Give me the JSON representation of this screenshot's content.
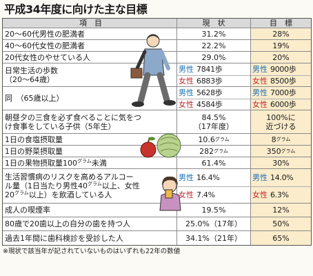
{
  "title": "平成34年度に向けた主な目標",
  "headers": {
    "item": "項　目",
    "current": "現　状",
    "target": "目　標"
  },
  "rows": [
    {
      "item": "20〜60代男性の肥満者",
      "current": "31.2%",
      "target": "28%"
    },
    {
      "item": "40〜60代女性の肥満者",
      "current": "22.2%",
      "target": "19%"
    },
    {
      "item": "20代女性のやせている人",
      "current": "29.0%",
      "target": "20%"
    },
    {
      "item_line1": "日常生活の歩数",
      "item_line2": "（20〜64歳）",
      "current": [
        {
          "sex": "男性",
          "value": "7841歩"
        },
        {
          "sex": "女性",
          "value": "6883歩"
        }
      ],
      "target": [
        {
          "sex": "男性",
          "value": "9000歩"
        },
        {
          "sex": "女性",
          "value": "8500歩"
        }
      ]
    },
    {
      "item": "同　（65歳以上）",
      "current": [
        {
          "sex": "男性",
          "value": "5628歩"
        },
        {
          "sex": "女性",
          "value": "4584歩"
        }
      ],
      "target": [
        {
          "sex": "男性",
          "value": "7000歩"
        },
        {
          "sex": "女性",
          "value": "6000歩"
        }
      ]
    },
    {
      "item_line1": "朝昼夕の三食を必ず食べることに気をつ",
      "item_line2": "け食事をしている子供（5年生）",
      "current_line1": "84.5%",
      "current_line2": "（17年度）",
      "target_line1": "100%に",
      "target_line2": "近づける"
    },
    {
      "item": "1日の食塩摂取量",
      "current": "10.6",
      "current_unit": "グラム",
      "target": "8",
      "target_unit": "グラム"
    },
    {
      "item": "1日の野菜摂取量",
      "current": "282",
      "current_unit": "グラム",
      "target": "350",
      "target_unit": "グラム"
    },
    {
      "item": "1日の果物摂取量100",
      "item_unit": "グラム",
      "item_suffix": "未満",
      "current": "61.4%",
      "target": "30%"
    },
    {
      "item_line1": "生活習慣病のリスクを高めるアルコー",
      "item_line2": "ル量（1日当たり男性40",
      "item_line2_unit": "グラム",
      "item_line2_suffix": "以上、女性",
      "item_line3": "20",
      "item_line3_unit": "グラム",
      "item_line3_suffix": "以上）を飲酒している人",
      "current": [
        {
          "sex": "男性",
          "value": "16.4%"
        },
        {
          "sex": "女性",
          "value": "7.4%"
        }
      ],
      "target": [
        {
          "sex": "男性",
          "value": "14.0%"
        },
        {
          "sex": "女性",
          "value": "6.3%"
        }
      ]
    },
    {
      "item": "成人の喫煙率",
      "current": "19.5%",
      "target": "12%"
    },
    {
      "item": "80歳で20歯以上の自分の歯を持つ人",
      "current": "25.0%（17年）",
      "target": "50%"
    },
    {
      "item": "過去1年間に歯科検診を受診した人",
      "current": "34.1%（21年）",
      "target": "65%"
    }
  ],
  "footnote": "※現状で該当年が記されていないものはいずれも22年の数値",
  "colors": {
    "male": "#1a6fb8",
    "female": "#c0262c",
    "target_bg": "#fbeccb",
    "header_bg": "#d9d9d9"
  },
  "illustrations": [
    "walking-man-illustration",
    "vegetables-illustration",
    "drinking-woman-illustration"
  ]
}
